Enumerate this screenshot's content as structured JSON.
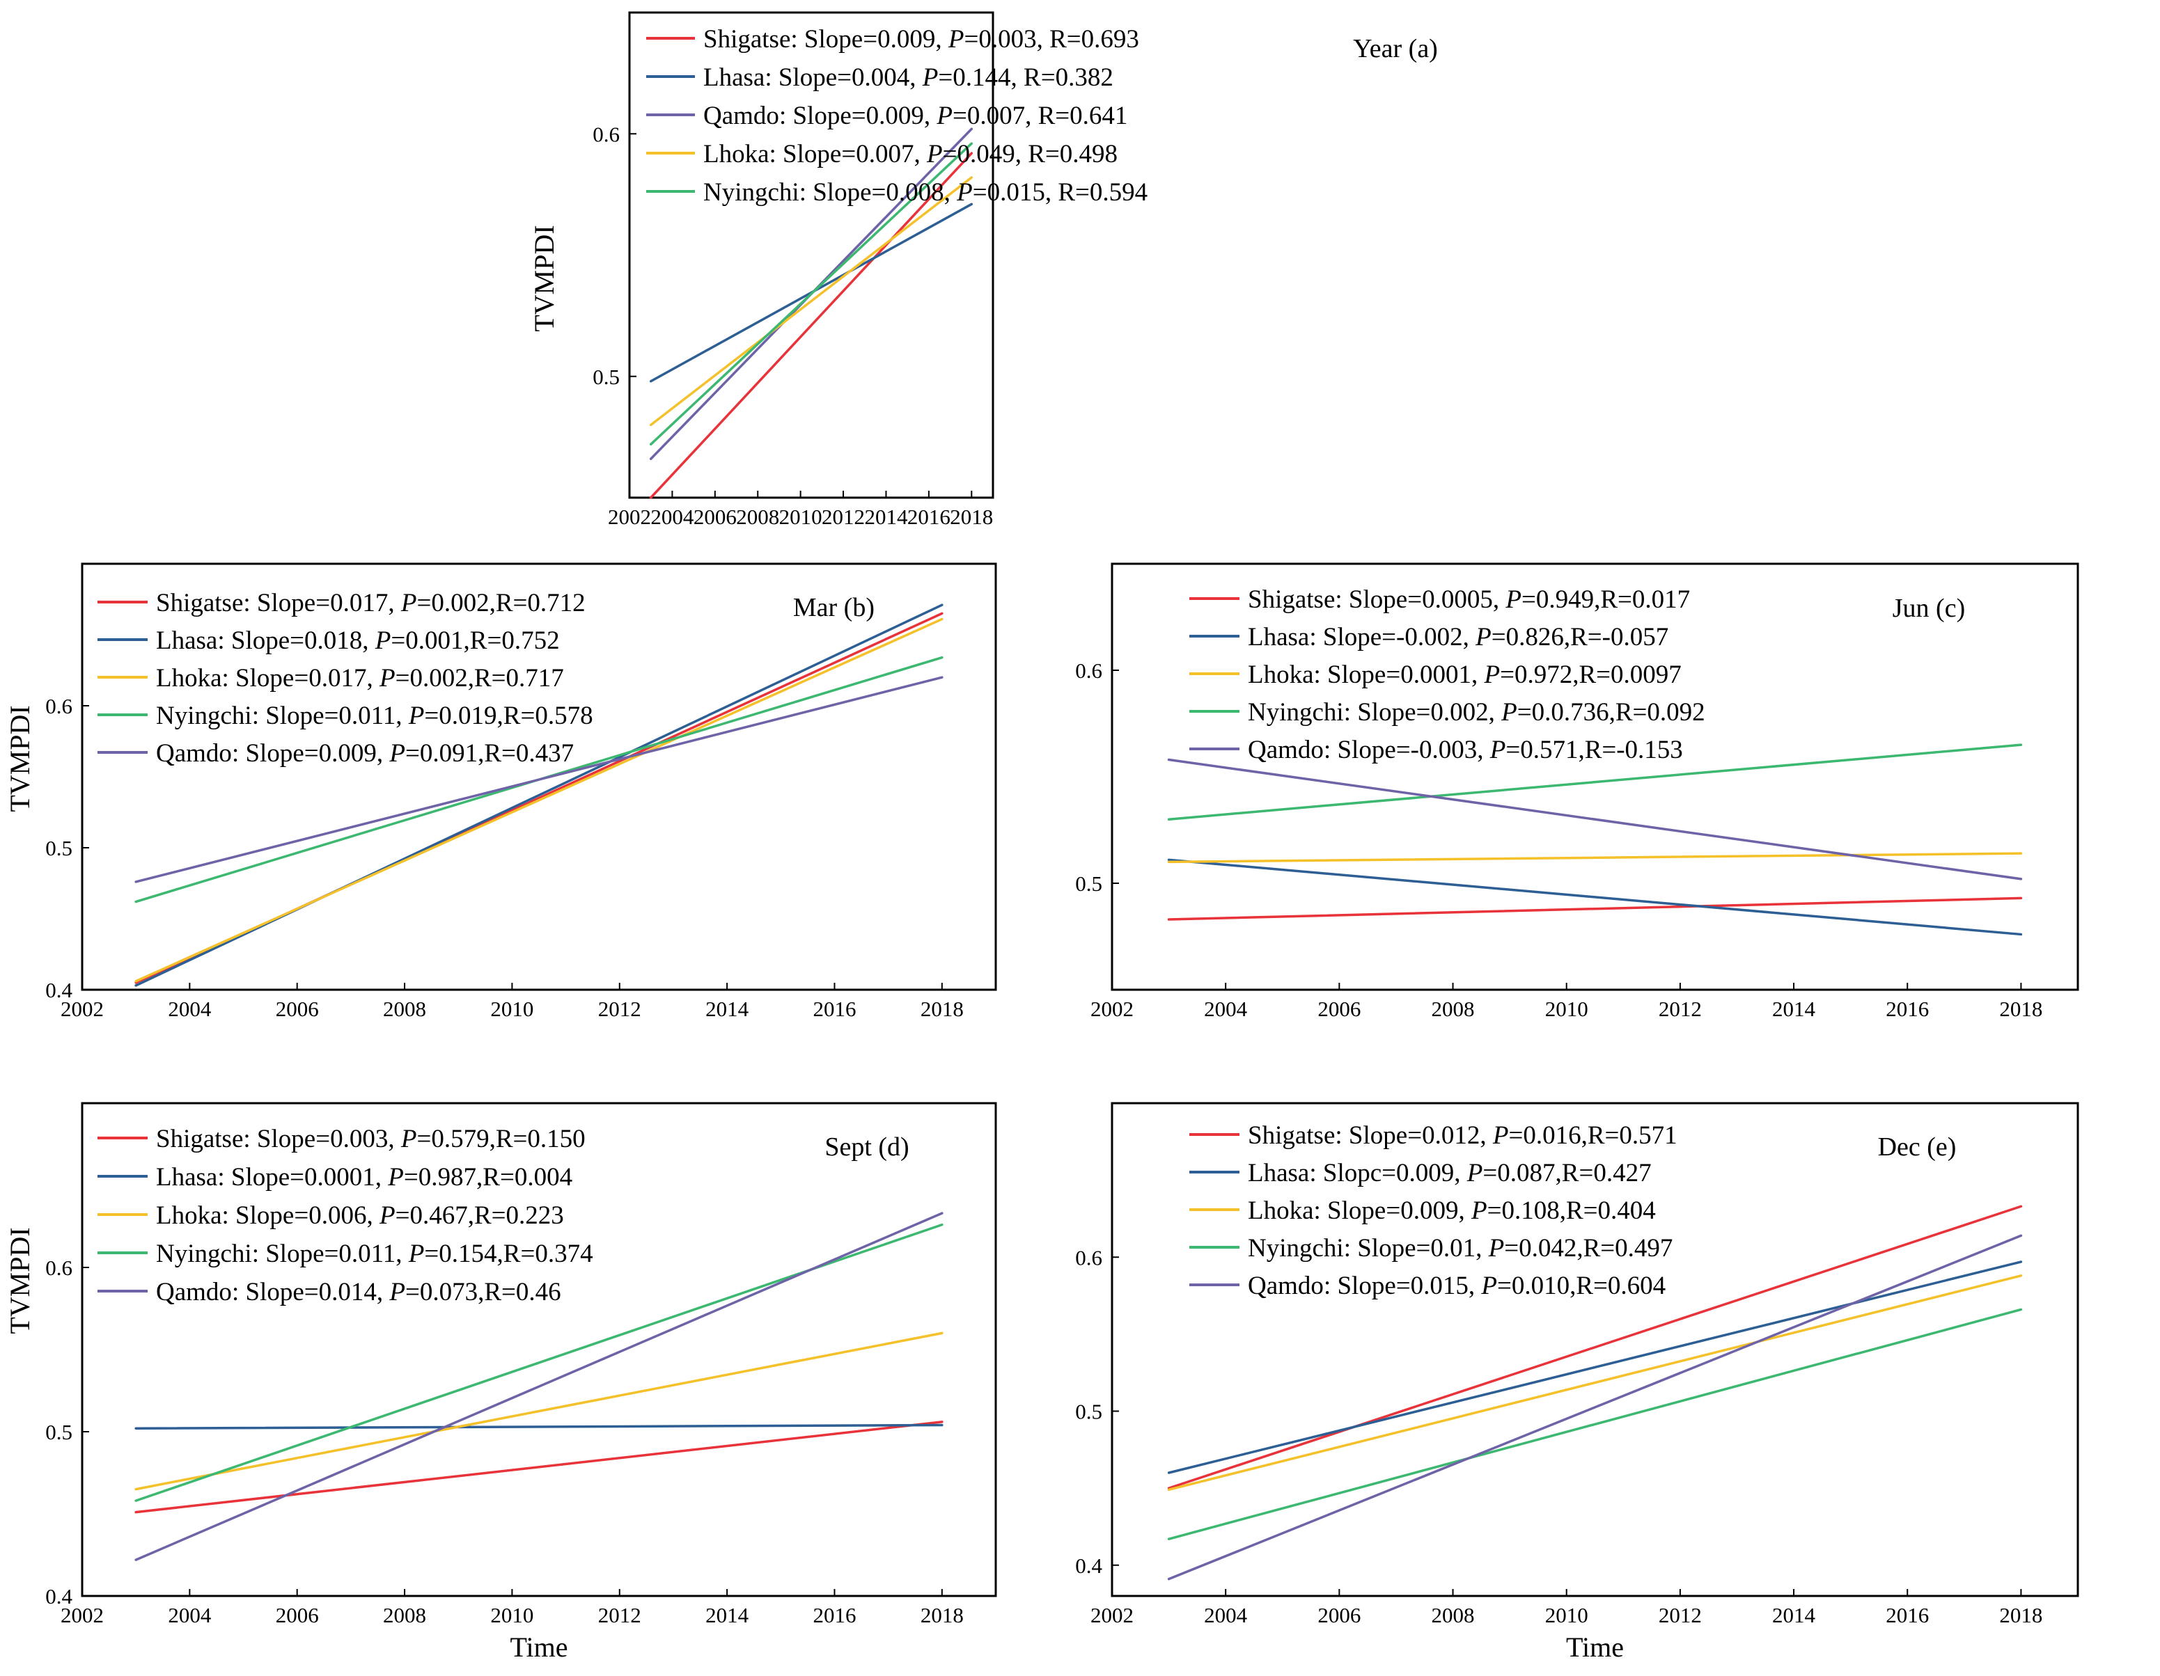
{
  "figure": {
    "description_label": "TVMPDI trends by city"
  },
  "chart_data": [
    {
      "id": "a",
      "type": "line",
      "title": "Year (a)",
      "xlabel": "",
      "ylabel": "TVMPDI",
      "xlim": [
        2002,
        2019
      ],
      "ylim": [
        0.45,
        0.65
      ],
      "xticks": [
        2002,
        2004,
        2006,
        2008,
        2010,
        2012,
        2014,
        2016,
        2018
      ],
      "yticks": [
        0.5,
        0.6
      ],
      "x": [
        2003,
        2018
      ],
      "series": [
        {
          "name": "Shigatse",
          "color": "#e8333a",
          "values": [
            0.45,
            0.592
          ],
          "slope": "0.009",
          "p": "0.003",
          "r": "0.693",
          "psep": ", "
        },
        {
          "name": "Lhasa",
          "color": "#2d5f95",
          "values": [
            0.498,
            0.571
          ],
          "slope": "0.004",
          "p": "0.144",
          "r": "0.382",
          "psep": ", "
        },
        {
          "name": "Qamdo",
          "color": "#6f63a8",
          "values": [
            0.466,
            0.602
          ],
          "slope": "0.009",
          "p": "0.007",
          "r": "0.641",
          "psep": ", "
        },
        {
          "name": "Lhoka",
          "color": "#f5c12b",
          "values": [
            0.48,
            0.582
          ],
          "slope": "0.007",
          "p": "0.049",
          "r": "0.498",
          "psep": ", "
        },
        {
          "name": "Nyingchi",
          "color": "#3cb871",
          "values": [
            0.472,
            0.596
          ],
          "slope": "0.008",
          "p": "0.015",
          "r": "0.594",
          "psep": ", "
        }
      ]
    },
    {
      "id": "b",
      "type": "line",
      "title": "Mar (b)",
      "xlabel": "",
      "ylabel": "TVMPDI",
      "xlim": [
        2002,
        2019
      ],
      "ylim": [
        0.4,
        0.7
      ],
      "xticks": [
        2002,
        2004,
        2006,
        2008,
        2010,
        2012,
        2014,
        2016,
        2018
      ],
      "yticks": [
        0.4,
        0.5,
        0.6
      ],
      "x": [
        2003,
        2018
      ],
      "series": [
        {
          "name": "Shigatse",
          "color": "#e8333a",
          "values": [
            0.405,
            0.665
          ],
          "slope": "0.017",
          "p": "0.002",
          "r": "0.712",
          "psep": ","
        },
        {
          "name": "Lhasa",
          "color": "#2d5f95",
          "values": [
            0.403,
            0.671
          ],
          "slope": "0.018",
          "p": "0.001",
          "r": "0.752",
          "psep": ","
        },
        {
          "name": "Lhoka",
          "color": "#f5c12b",
          "values": [
            0.406,
            0.661
          ],
          "slope": "0.017",
          "p": "0.002",
          "r": "0.717",
          "psep": ","
        },
        {
          "name": "Nyingchi",
          "color": "#3cb871",
          "values": [
            0.462,
            0.634
          ],
          "slope": "0.011",
          "p": "0.019",
          "r": "0.578",
          "psep": ","
        },
        {
          "name": "Qamdo",
          "color": "#6f63a8",
          "values": [
            0.476,
            0.62
          ],
          "slope": "0.009",
          "p": "0.091",
          "r": "0.437",
          "psep": ","
        }
      ]
    },
    {
      "id": "c",
      "type": "line",
      "title": "Jun (c)",
      "xlabel": "",
      "ylabel": "",
      "xlim": [
        2002,
        2019
      ],
      "ylim": [
        0.45,
        0.65
      ],
      "xticks": [
        2002,
        2004,
        2006,
        2008,
        2010,
        2012,
        2014,
        2016,
        2018
      ],
      "yticks": [
        0.5,
        0.6
      ],
      "x": [
        2003,
        2018
      ],
      "series": [
        {
          "name": "Shigatse",
          "color": "#e8333a",
          "values": [
            0.483,
            0.493
          ],
          "slope": "0.0005",
          "p": "0.949",
          "r": "0.017",
          "psep": ","
        },
        {
          "name": "Lhasa",
          "color": "#2d5f95",
          "values": [
            0.511,
            0.476
          ],
          "slope": "-0.002",
          "p": "0.826",
          "r": "-0.057",
          "psep": ","
        },
        {
          "name": "Lhoka",
          "color": "#f5c12b",
          "values": [
            0.51,
            0.514
          ],
          "slope": "0.0001",
          "p": "0.972",
          "r": "0.0097",
          "psep": ","
        },
        {
          "name": "Nyingchi",
          "color": "#3cb871",
          "values": [
            0.53,
            0.565
          ],
          "slope": "0.002",
          "p": "0.0.736",
          "r": "0.092",
          "psep": ","
        },
        {
          "name": "Qamdo",
          "color": "#6f63a8",
          "values": [
            0.558,
            0.502
          ],
          "slope": "-0.003",
          "p": "0.571",
          "r": "-0.153",
          "psep": ","
        }
      ]
    },
    {
      "id": "d",
      "type": "line",
      "title": "Sept (d)",
      "xlabel": "Time",
      "ylabel": "TVMPDI",
      "xlim": [
        2002,
        2019
      ],
      "ylim": [
        0.4,
        0.7
      ],
      "xticks": [
        2002,
        2004,
        2006,
        2008,
        2010,
        2012,
        2014,
        2016,
        2018
      ],
      "yticks": [
        0.4,
        0.5,
        0.6
      ],
      "x": [
        2003,
        2018
      ],
      "series": [
        {
          "name": "Shigatse",
          "color": "#e8333a",
          "values": [
            0.451,
            0.506
          ],
          "slope": "0.003",
          "p": "0.579",
          "r": "0.150",
          "psep": ","
        },
        {
          "name": "Lhasa",
          "color": "#2d5f95",
          "values": [
            0.502,
            0.504
          ],
          "slope": "0.0001",
          "p": "0.987",
          "r": "0.004",
          "psep": ","
        },
        {
          "name": "Lhoka",
          "color": "#f5c12b",
          "values": [
            0.465,
            0.56
          ],
          "slope": "0.006",
          "p": "0.467",
          "r": "0.223",
          "psep": ","
        },
        {
          "name": "Nyingchi",
          "color": "#3cb871",
          "values": [
            0.458,
            0.626
          ],
          "slope": "0.011",
          "p": "0.154",
          "r": "0.374",
          "psep": ","
        },
        {
          "name": "Qamdo",
          "color": "#6f63a8",
          "values": [
            0.422,
            0.633
          ],
          "slope": "0.014",
          "p": "0.073",
          "r": "0.46",
          "psep": ","
        }
      ]
    },
    {
      "id": "e",
      "type": "line",
      "title": "Dec (e)",
      "xlabel": "Time",
      "ylabel": "",
      "xlim": [
        2002,
        2019
      ],
      "ylim": [
        0.38,
        0.7
      ],
      "xticks": [
        2002,
        2004,
        2006,
        2008,
        2010,
        2012,
        2014,
        2016,
        2018
      ],
      "yticks": [
        0.4,
        0.5,
        0.6
      ],
      "x": [
        2003,
        2018
      ],
      "series": [
        {
          "name": "Shigatse",
          "color": "#e8333a",
          "values": [
            0.45,
            0.633
          ],
          "slope": "0.012",
          "p": "0.016",
          "r": "0.571",
          "psep": ","
        },
        {
          "name": "Lhasa",
          "color": "#2d5f95",
          "values": [
            0.46,
            0.597
          ],
          "slope": "0.009",
          "p": "0.087",
          "r": "0.427",
          "psep": ",",
          "slope_word": "Slopc"
        },
        {
          "name": "Lhoka",
          "color": "#f5c12b",
          "values": [
            0.449,
            0.588
          ],
          "slope": "0.009",
          "p": "0.108",
          "r": "0.404",
          "psep": ","
        },
        {
          "name": "Nyingchi",
          "color": "#3cb871",
          "values": [
            0.417,
            0.566
          ],
          "slope": "0.01",
          "p": "0.042",
          "r": "0.497",
          "psep": ","
        },
        {
          "name": "Qamdo",
          "color": "#6f63a8",
          "values": [
            0.391,
            0.614
          ],
          "slope": "0.015",
          "p": "0.010",
          "r": "0.604",
          "psep": ","
        }
      ]
    }
  ]
}
